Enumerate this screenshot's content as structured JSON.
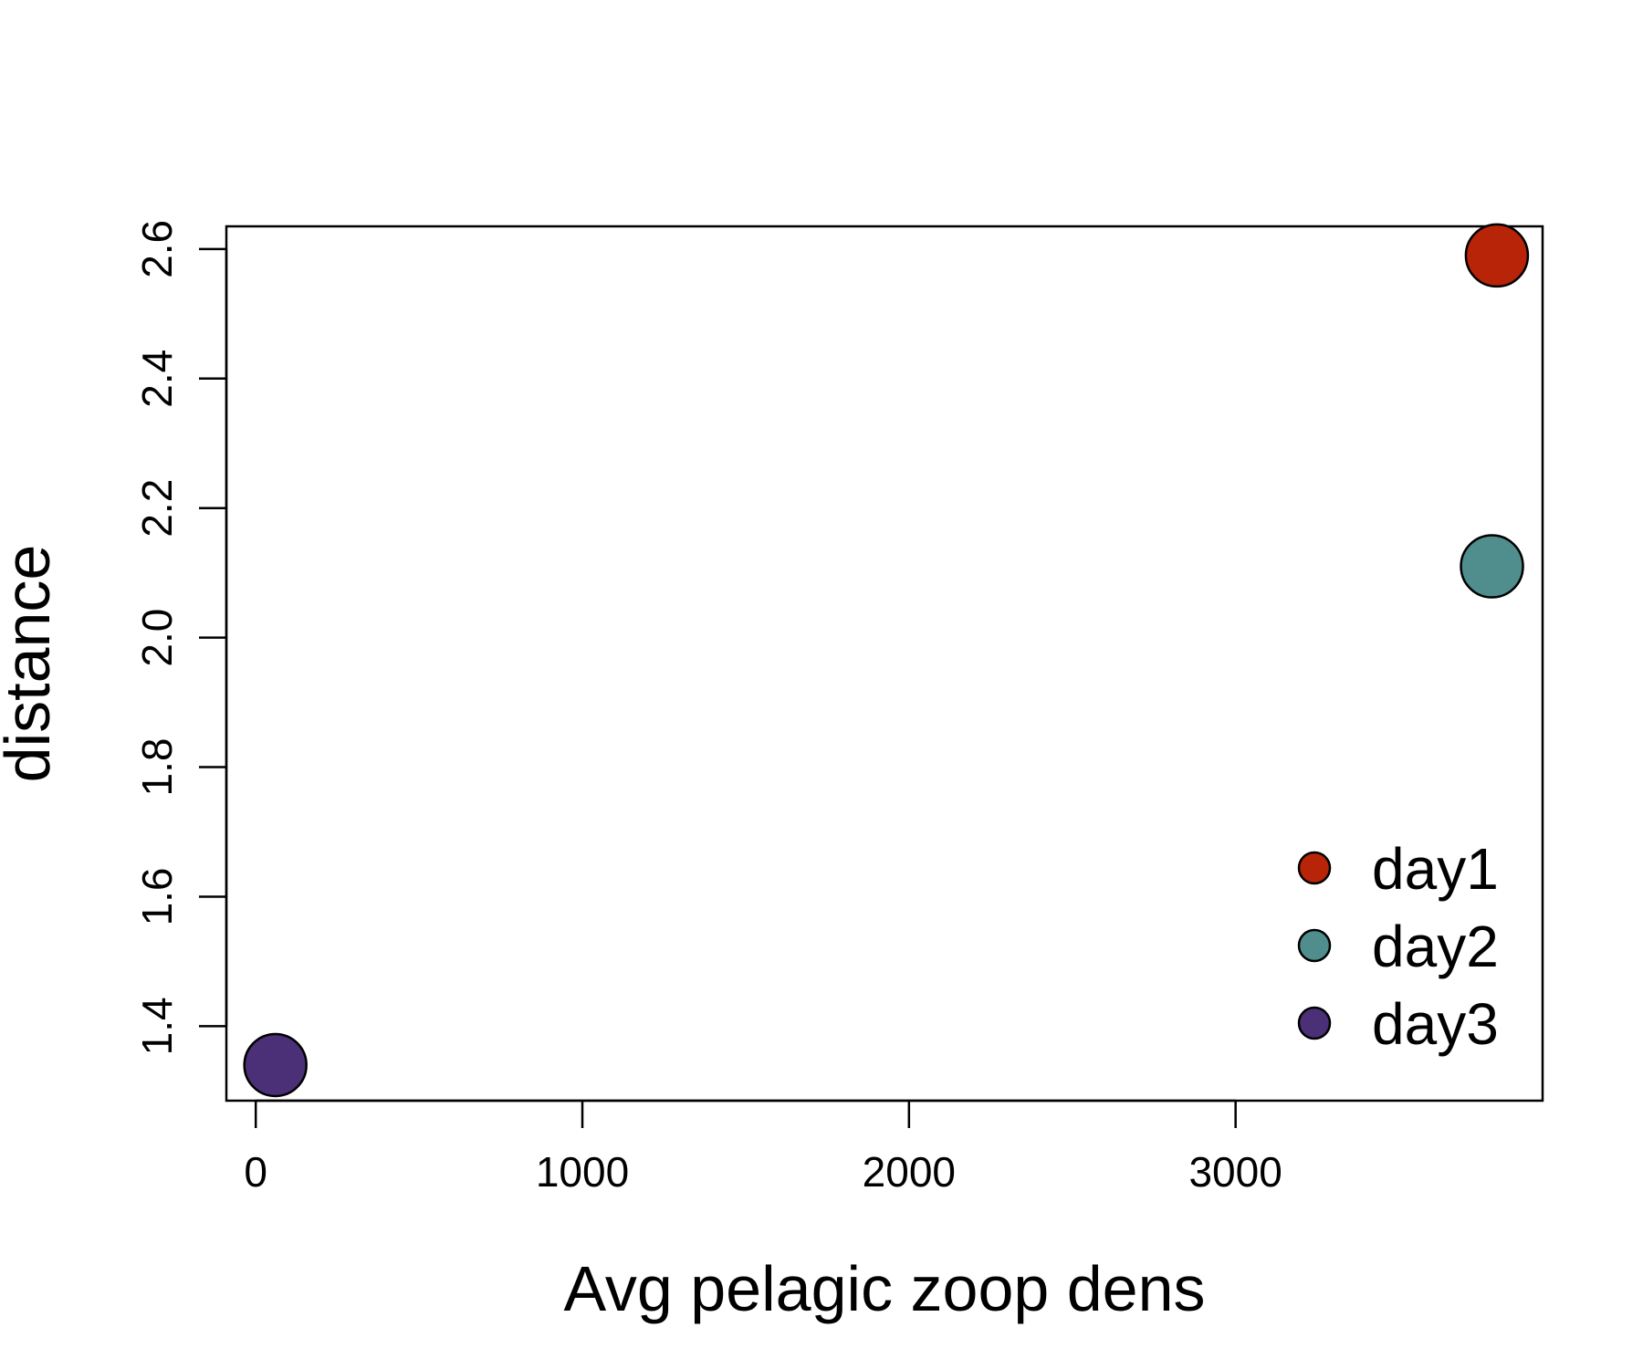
{
  "chart_data": {
    "type": "scatter",
    "title": "",
    "xlabel": "Avg pelagic zoop dens",
    "ylabel": "distance",
    "xlim": [
      -90,
      3940
    ],
    "ylim": [
      1.285,
      2.635
    ],
    "x_ticks": [
      0,
      1000,
      2000,
      3000
    ],
    "y_ticks": [
      1.4,
      1.6,
      1.8,
      2.0,
      2.2,
      2.4,
      2.6
    ],
    "grid": false,
    "legend_position": "bottom-right",
    "series": [
      {
        "name": "day1",
        "color": "#B82407",
        "x": 3800,
        "y": 2.59
      },
      {
        "name": "day2",
        "color": "#4F8E8C",
        "x": 3785,
        "y": 2.11
      },
      {
        "name": "day3",
        "color": "#4B2F77",
        "x": 60,
        "y": 1.34
      }
    ]
  }
}
